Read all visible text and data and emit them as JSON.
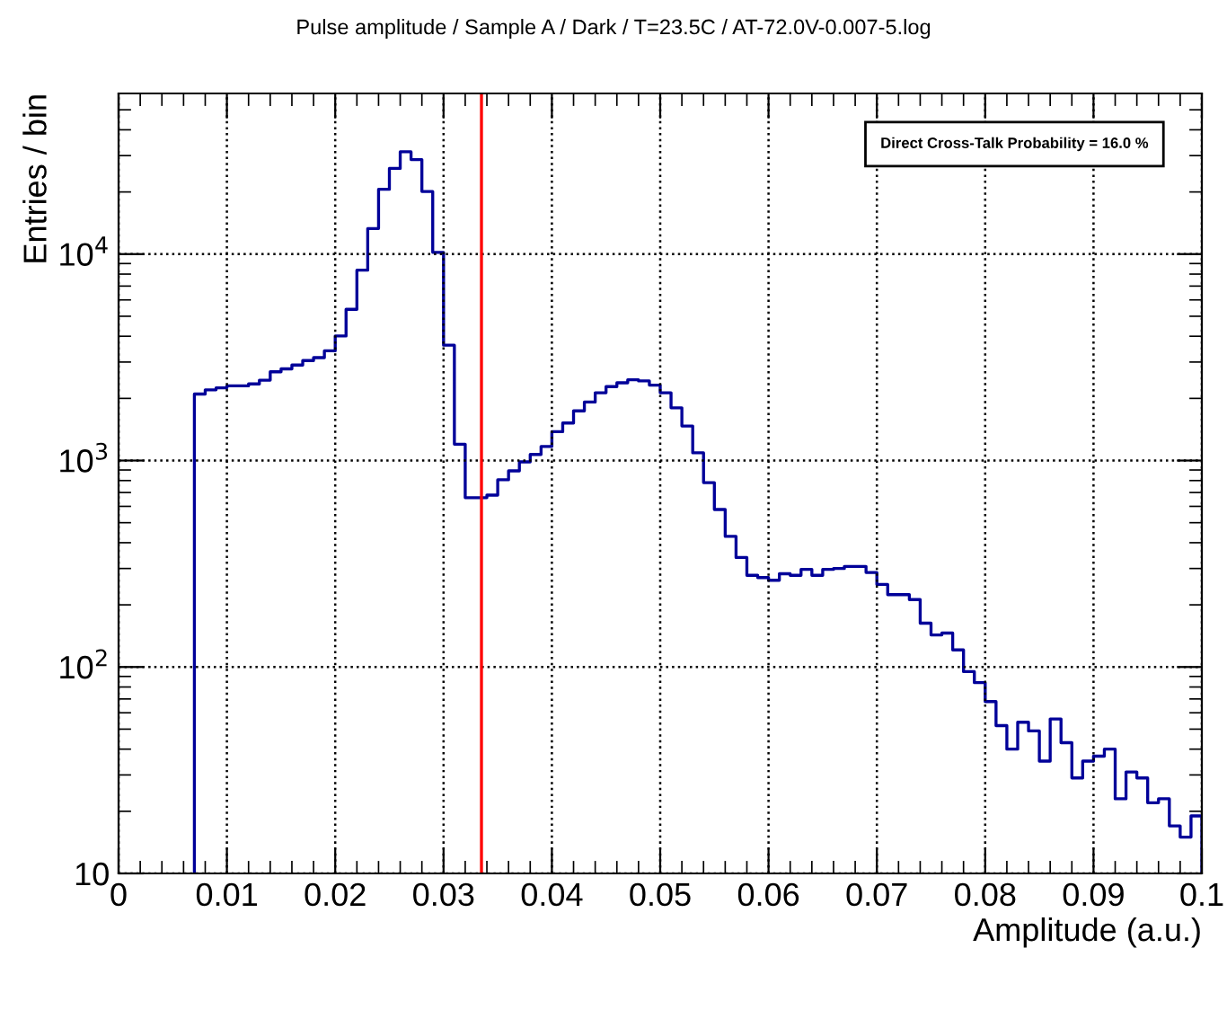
{
  "chart_data": {
    "type": "histogram",
    "title": "Pulse amplitude / Sample A / Dark / T=23.5C / AT-72.0V-0.007-5.log",
    "xlabel": "Amplitude (a.u.)",
    "ylabel": "Entries / bin",
    "bins": [
      0.007,
      0.008,
      0.009,
      0.01,
      0.011,
      0.012,
      0.013,
      0.014,
      0.015,
      0.016,
      0.017,
      0.018,
      0.019,
      0.02,
      0.021,
      0.022,
      0.023,
      0.024,
      0.025,
      0.026,
      0.027,
      0.028,
      0.029,
      0.03,
      0.031,
      0.032,
      0.033,
      0.034,
      0.035,
      0.036,
      0.037,
      0.038,
      0.039,
      0.04,
      0.041,
      0.042,
      0.043,
      0.044,
      0.045,
      0.046,
      0.047,
      0.048,
      0.049,
      0.05,
      0.051,
      0.052,
      0.053,
      0.054,
      0.055,
      0.056,
      0.057,
      0.058,
      0.059,
      0.06,
      0.061,
      0.062,
      0.063,
      0.064,
      0.065,
      0.066,
      0.067,
      0.068,
      0.069,
      0.07,
      0.071,
      0.072,
      0.073,
      0.074,
      0.075,
      0.076,
      0.077,
      0.078,
      0.079,
      0.08,
      0.081,
      0.082,
      0.083,
      0.084,
      0.085,
      0.086,
      0.087,
      0.088,
      0.089,
      0.09,
      0.091,
      0.092,
      0.093,
      0.094,
      0.095,
      0.096,
      0.097,
      0.098,
      0.099,
      0.1
    ],
    "values": [
      2100,
      2200,
      2250,
      2300,
      2300,
      2350,
      2450,
      2690,
      2780,
      2900,
      3050,
      3150,
      3400,
      4010,
      5400,
      8360,
      13300,
      20600,
      26000,
      31300,
      28700,
      20100,
      10200,
      3620,
      1200,
      661,
      661,
      680,
      807,
      891,
      985,
      1070,
      1170,
      1380,
      1520,
      1740,
      1920,
      2130,
      2280,
      2380,
      2460,
      2430,
      2320,
      2130,
      1800,
      1470,
      1090,
      782,
      579,
      429,
      339,
      278,
      271,
      263,
      283,
      278,
      297,
      278,
      297,
      300,
      307,
      307,
      287,
      251,
      224,
      224,
      212,
      163,
      143,
      146,
      121,
      95,
      84,
      68,
      52,
      40,
      54,
      49,
      35,
      56,
      43,
      29,
      35,
      37,
      40,
      23,
      31,
      29,
      22,
      23,
      17,
      15,
      19
    ],
    "color": "#000099",
    "log": "y",
    "xlim": [
      0,
      0.1
    ],
    "ylim": [
      10,
      60000
    ],
    "xticks": [
      {
        "value": 0,
        "label": "0"
      },
      0.01,
      0.02,
      0.03,
      0.04,
      0.05,
      0.06,
      0.07,
      0.08,
      0.09,
      {
        "value": 0.1,
        "label": "0.1"
      }
    ],
    "yticks": [
      {
        "value": 10,
        "label": "10"
      },
      {
        "value": 100,
        "label": "10$^{2}$"
      },
      {
        "value": 1000,
        "label": "10$^{3}$"
      },
      {
        "value": 10000,
        "label": "10$^{4}$"
      }
    ],
    "grid": true,
    "ref_lines": [
      {
        "axis": "x",
        "value": 0.0335,
        "color": "#ff0000",
        "line_style": "solid"
      }
    ],
    "annotations": [
      "Direct Cross-Talk Probability = 16.0 %"
    ]
  }
}
